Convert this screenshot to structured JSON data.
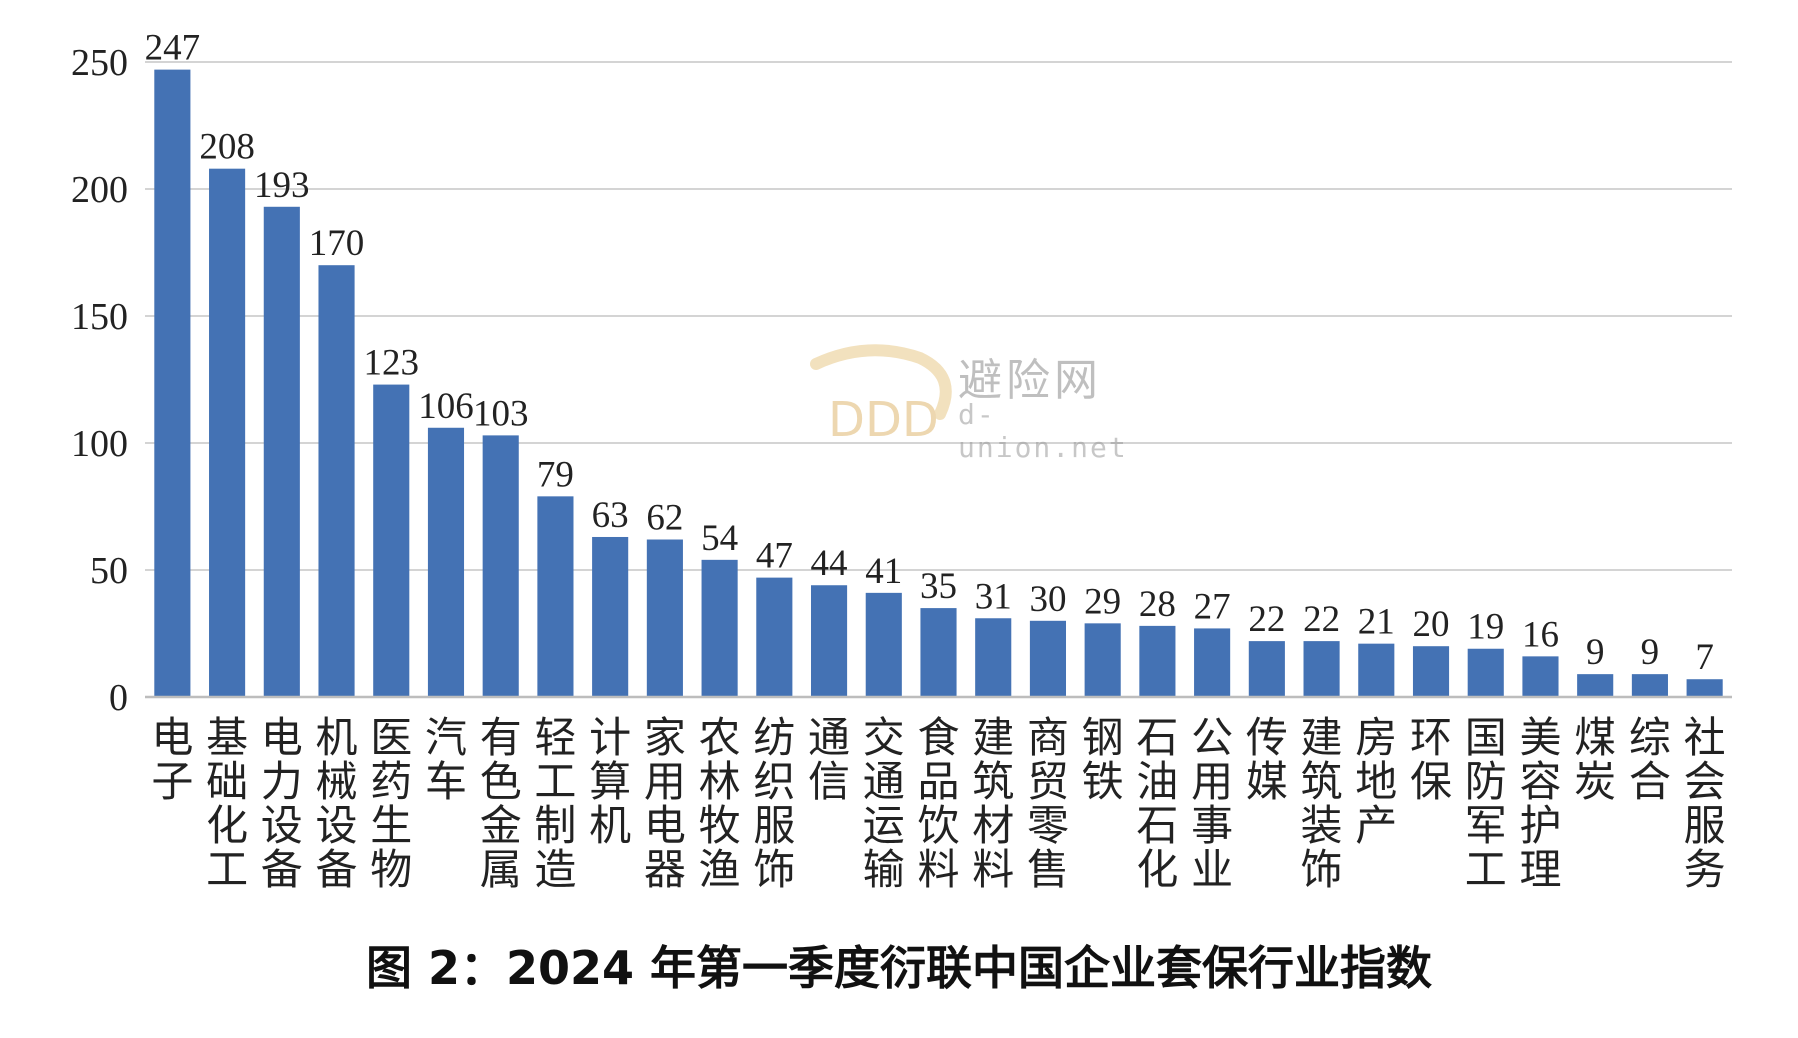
{
  "caption": "图 2：2024 年第一季度衍联中国企业套保行业指数",
  "watermark": {
    "cn": "避险网",
    "en": "d-union.net",
    "logo": "DDD"
  },
  "colors": {
    "bar": "#4472B4",
    "grid": "#d4d4d4"
  },
  "chart_data": {
    "type": "bar",
    "title": "",
    "xlabel": "",
    "ylabel": "",
    "ylim": [
      0,
      250
    ],
    "yticks": [
      0,
      50,
      100,
      150,
      200,
      250
    ],
    "grid": true,
    "categories": [
      "电子",
      "基础化工",
      "电力设备",
      "机械设备",
      "医药生物",
      "汽车",
      "有色金属",
      "轻工制造",
      "计算机",
      "家用电器",
      "农林牧渔",
      "纺织服饰",
      "通信",
      "交通运输",
      "食品饮料",
      "建筑材料",
      "商贸零售",
      "钢铁",
      "石油石化",
      "公用事业",
      "传媒",
      "建筑装饰",
      "房地产",
      "环保",
      "国防军工",
      "美容护理",
      "煤炭",
      "综合",
      "社会服务"
    ],
    "values": [
      247,
      208,
      193,
      170,
      123,
      106,
      103,
      79,
      63,
      62,
      54,
      47,
      44,
      41,
      35,
      31,
      30,
      29,
      28,
      27,
      22,
      22,
      21,
      20,
      19,
      16,
      9,
      9,
      7
    ]
  }
}
